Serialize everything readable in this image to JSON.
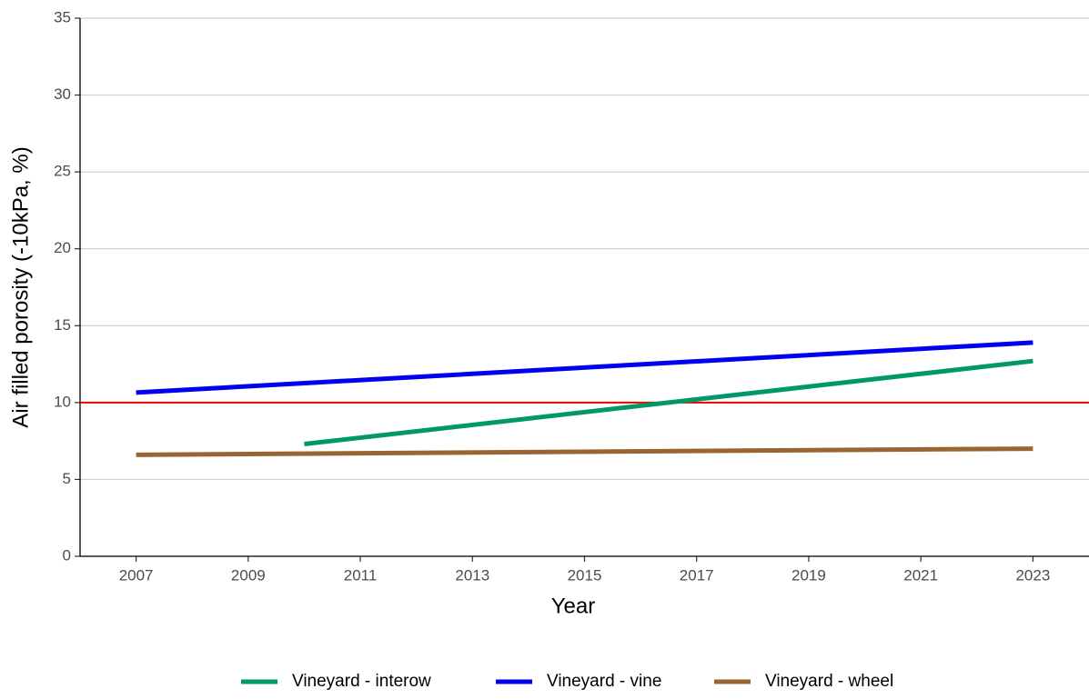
{
  "chart_data": {
    "type": "line",
    "x_label": "Year",
    "y_label": "Air filled porosity (-10kPa, %)",
    "xlim": [
      2006,
      2024
    ],
    "xticks": [
      2007,
      2009,
      2011,
      2013,
      2015,
      2017,
      2019,
      2021,
      2023
    ],
    "ylim": [
      0,
      35
    ],
    "yticks": [
      0,
      5,
      10,
      15,
      20,
      25,
      30,
      35
    ],
    "grid": true,
    "legend": "bottom",
    "hline": {
      "value": 10,
      "color": "#ee0000"
    },
    "series": [
      {
        "name": "Vineyard - interow",
        "color": "#009966",
        "x": [
          2010,
          2023
        ],
        "values": [
          7.3,
          12.7
        ]
      },
      {
        "name": "Vineyard - vine",
        "color": "#0000ee",
        "x": [
          2007,
          2023
        ],
        "values": [
          10.65,
          13.9
        ]
      },
      {
        "name": "Vineyard - wheel",
        "color": "#996633",
        "x": [
          2007,
          2023
        ],
        "values": [
          6.6,
          7.0
        ]
      }
    ]
  }
}
